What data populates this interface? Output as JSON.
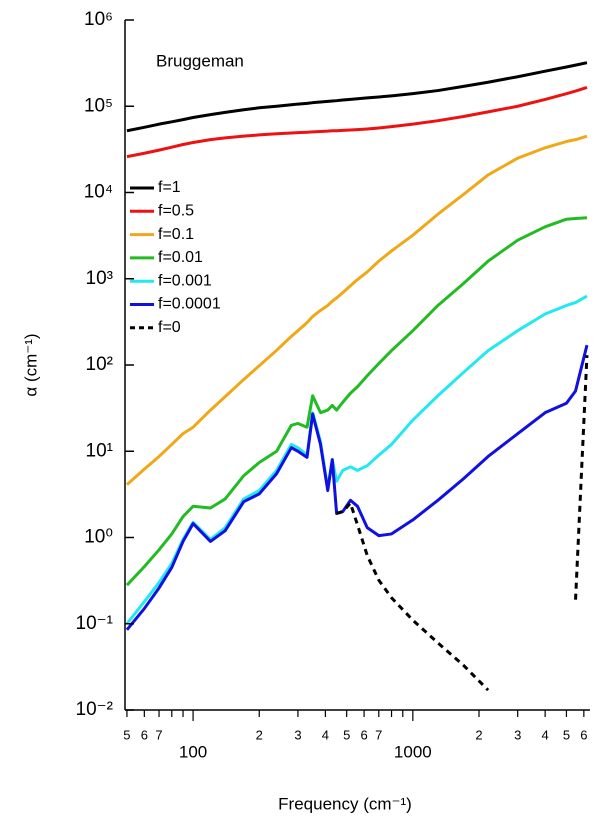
{
  "chart_data": {
    "type": "line",
    "title": "Bruggeman",
    "x_label": "Frequency (cm⁻¹)",
    "y_label": "α (cm⁻¹)",
    "xlog": true,
    "ylog": true,
    "xlim": [
      49,
      6400
    ],
    "ylim": [
      0.01,
      1000000
    ],
    "xticks": [
      {
        "value": 50,
        "label": "5"
      },
      {
        "value": 60,
        "label": "6"
      },
      {
        "value": 70,
        "label": "7"
      },
      100,
      {
        "value": 200,
        "label": "2"
      },
      {
        "value": 300,
        "label": "3"
      },
      {
        "value": 400,
        "label": "4"
      },
      {
        "value": 500,
        "label": "5"
      },
      {
        "value": 600,
        "label": "6"
      },
      {
        "value": 700,
        "label": "7"
      },
      1000,
      {
        "value": 2000,
        "label": "2"
      },
      {
        "value": 3000,
        "label": "3"
      },
      {
        "value": 4000,
        "label": "4"
      },
      {
        "value": 5000,
        "label": "5"
      },
      {
        "value": 6000,
        "label": "6"
      }
    ],
    "xminor": [
      80,
      90,
      800,
      900
    ],
    "yticks": [
      {
        "value": 0.01,
        "label": "10⁻²"
      },
      {
        "value": 0.1,
        "label": "10⁻¹"
      },
      {
        "value": 1,
        "label": "10⁰"
      },
      {
        "value": 10,
        "label": "10¹"
      },
      {
        "value": 100,
        "label": "10²"
      },
      {
        "value": 1000,
        "label": "10³"
      },
      {
        "value": 10000,
        "label": "10⁴"
      },
      {
        "value": 100000,
        "label": "10⁵"
      },
      {
        "value": 1000000,
        "label": "10⁶"
      }
    ],
    "x": [
      50,
      60,
      70,
      80,
      90,
      100,
      120,
      140,
      170,
      200,
      240,
      280,
      300,
      330,
      350,
      380,
      410,
      430,
      450,
      480,
      520,
      560,
      620,
      700,
      800,
      1000,
      1300,
      1700,
      2200,
      3000,
      4000,
      5000,
      5500,
      6200
    ],
    "series": [
      {
        "name": "f=1",
        "color": "#000000",
        "dashed": false,
        "values": [
          52000,
          57000,
          62000,
          66000,
          70000,
          74000,
          80000,
          85000,
          91000,
          96000,
          100000,
          104000,
          106000,
          108000,
          110000,
          112000,
          114000,
          115000,
          116000,
          118000,
          120000,
          122000,
          125000,
          128000,
          132000,
          140000,
          152000,
          170000,
          190000,
          220000,
          255000,
          285000,
          300000,
          320000
        ]
      },
      {
        "name": "f=0.5",
        "color": "#ee1111",
        "dashed": false,
        "values": [
          26000,
          28500,
          31000,
          33500,
          36000,
          38000,
          41000,
          43000,
          45000,
          46500,
          48000,
          49000,
          49500,
          50000,
          50500,
          51000,
          51500,
          52000,
          52000,
          52500,
          53000,
          53500,
          54500,
          56000,
          58000,
          62000,
          68000,
          76000,
          86000,
          100000,
          120000,
          140000,
          150000,
          165000
        ]
      },
      {
        "name": "f=0.1",
        "color": "#f0a818",
        "dashed": false,
        "values": [
          4.1,
          6.2,
          8.7,
          12,
          16,
          19,
          30,
          43,
          68,
          98,
          148,
          215,
          250,
          310,
          365,
          430,
          490,
          550,
          600,
          690,
          830,
          980,
          1200,
          1600,
          2100,
          3200,
          5600,
          9500,
          16000,
          25000,
          33000,
          39000,
          41000,
          45000
        ]
      },
      {
        "name": "f=0.01",
        "color": "#22bb22",
        "dashed": false,
        "values": [
          0.28,
          0.46,
          0.72,
          1.1,
          1.75,
          2.3,
          2.2,
          2.8,
          5.2,
          7.4,
          10,
          20,
          21,
          19,
          44,
          28,
          30,
          34,
          30,
          37,
          47,
          56,
          75,
          104,
          147,
          250,
          490,
          880,
          1600,
          2800,
          4000,
          4900,
          5000,
          5100
        ]
      },
      {
        "name": "f=0.001",
        "color": "#22e8f0",
        "dashed": false,
        "values": [
          0.1,
          0.18,
          0.3,
          0.5,
          0.95,
          1.5,
          0.95,
          1.3,
          2.8,
          3.5,
          6,
          12,
          11,
          9,
          28,
          13,
          3.7,
          8,
          4.5,
          6,
          6.6,
          6,
          6.8,
          9,
          12,
          23,
          44,
          82,
          147,
          250,
          390,
          490,
          530,
          630
        ]
      },
      {
        "name": "f=0.0001",
        "color": "#1010e0",
        "dashed": false,
        "values": [
          0.085,
          0.15,
          0.26,
          0.45,
          0.9,
          1.45,
          0.9,
          1.2,
          2.6,
          3.2,
          5.5,
          11,
          10,
          8.5,
          27,
          12,
          3.5,
          8,
          1.9,
          2,
          2.7,
          2.3,
          1.3,
          1.05,
          1.1,
          1.6,
          2.7,
          4.8,
          8.7,
          16,
          28,
          36,
          50,
          170
        ]
      },
      {
        "name": "f=0",
        "color": "#000000",
        "dashed": true,
        "values": [
          null,
          null,
          null,
          null,
          null,
          null,
          null,
          null,
          null,
          null,
          null,
          null,
          null,
          null,
          null,
          null,
          null,
          null,
          1.9,
          2,
          2.5,
          1.4,
          0.62,
          0.32,
          0.2,
          0.11,
          0.06,
          0.033,
          0.017,
          null,
          null,
          null,
          0.19,
          130
        ]
      }
    ]
  }
}
